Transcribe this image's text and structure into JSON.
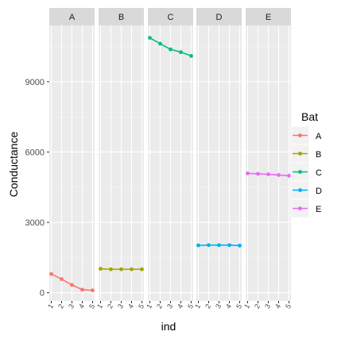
{
  "chart_data": {
    "type": "line",
    "facet_variable": "Bat",
    "facets": [
      "A",
      "B",
      "C",
      "D",
      "E"
    ],
    "x": [
      "1",
      "2",
      "3",
      "4",
      "5"
    ],
    "xlabel": "ind",
    "ylabel": "Conductance",
    "ylim": [
      -350,
      11400
    ],
    "yticks": [
      0,
      3000,
      6000,
      9000
    ],
    "grid": true,
    "legend": {
      "title": "Bat",
      "position": "right"
    },
    "series": [
      {
        "name": "A",
        "color": "#F8766D",
        "values": [
          800,
          580,
          330,
          130,
          100
        ]
      },
      {
        "name": "B",
        "color": "#A3A500",
        "values": [
          1020,
          1000,
          1000,
          1000,
          1000
        ]
      },
      {
        "name": "C",
        "color": "#00BF7D",
        "values": [
          10870,
          10620,
          10380,
          10260,
          10100
        ]
      },
      {
        "name": "D",
        "color": "#00B0F6",
        "values": [
          2020,
          2030,
          2030,
          2030,
          2010
        ]
      },
      {
        "name": "E",
        "color": "#E76BF3",
        "values": [
          5090,
          5070,
          5050,
          5020,
          4990
        ]
      }
    ]
  }
}
